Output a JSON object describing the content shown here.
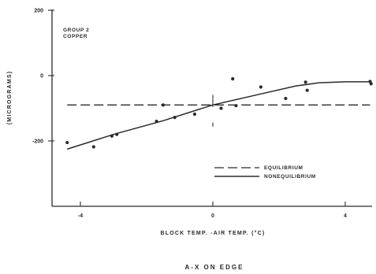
{
  "chart_data": {
    "type": "scatter",
    "title": "",
    "xlabel": "BLOCK TEMP. -AIR TEMP. (°C)",
    "ylabel": "(MICROGRAMS)",
    "xlim": [
      -4.6,
      4.8
    ],
    "ylim": [
      -290,
      200
    ],
    "x_ticks": [
      -4,
      0,
      4
    ],
    "x_tick_labels": [
      "-4",
      "0",
      "4"
    ],
    "y_ticks": [
      200,
      0,
      -200
    ],
    "y_tick_labels": [
      "200",
      "0",
      "-200"
    ],
    "annotation": [
      "GROUP 2",
      "COPPER"
    ],
    "caption": "A-X ON EDGE",
    "grid": false,
    "legend_position": "lower-right",
    "points": {
      "x": [
        -4.4,
        -3.6,
        -3.05,
        -2.9,
        -1.7,
        -1.5,
        -1.15,
        -0.55,
        0.25,
        0.6,
        0.7,
        1.45,
        2.2,
        2.8,
        2.85,
        4.75,
        4.78
      ],
      "y": [
        -205,
        -218,
        -185,
        -180,
        -140,
        -90,
        -128,
        -118,
        -100,
        -10,
        -92,
        -35,
        -70,
        -20,
        -45,
        -18,
        -25
      ]
    },
    "series": [
      {
        "name": "EQUILIBRIUM",
        "style": "dashed",
        "x": [
          -4.4,
          4.75
        ],
        "y": [
          -90,
          -90
        ]
      },
      {
        "name": "NONEQUILIBRIUM",
        "style": "solid",
        "x": [
          -4.4,
          -3.0,
          -1.5,
          0.0,
          1.5,
          2.5,
          3.2,
          4.0,
          4.75
        ],
        "y": [
          -225,
          -180,
          -138,
          -90,
          -55,
          -32,
          -22,
          -19,
          -19
        ]
      }
    ],
    "error_marks": {
      "x": [
        0.0
      ],
      "y": [
        -65,
        -78,
        -90,
        -150
      ]
    }
  }
}
